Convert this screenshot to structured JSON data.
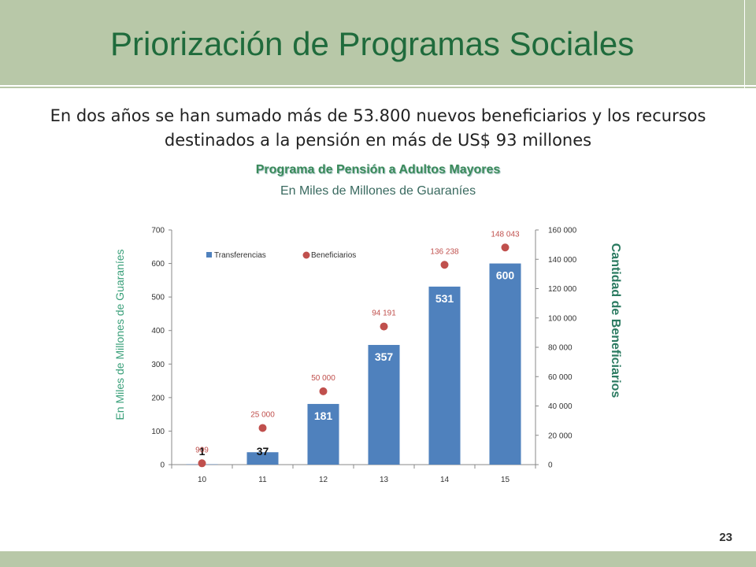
{
  "slide": {
    "title": "Priorización de Programas Sociales",
    "subtitle": "En dos años se han sumado más de 53.800 nuevos beneficiarios y los recursos destinados a la pensión en más de US$ 93 millones",
    "page_number": "23"
  },
  "colors": {
    "band": "#b8c8a8",
    "title": "#1f6b3c",
    "bar": "#4f81bd",
    "dot": "#c0504d"
  },
  "chart_data": {
    "type": "bar",
    "title": "Programa de Pensión a Adultos Mayores",
    "subtitle": "En Miles de Millones de Guaraníes",
    "ylabel": "En Miles de Millones de Guaraníes",
    "y2label": "Cantidad de Beneficiarios",
    "categories": [
      "10",
      "11",
      "12",
      "13",
      "14",
      "15"
    ],
    "ylim": [
      0,
      700
    ],
    "y_ticks": [
      "0",
      "100",
      "200",
      "300",
      "400",
      "500",
      "600",
      "700"
    ],
    "y2lim": [
      0,
      160000
    ],
    "y2_ticks": [
      "0",
      "20 000",
      "40 000",
      "60 000",
      "80 000",
      "100 000",
      "120 000",
      "140 000",
      "160 000"
    ],
    "grid": false,
    "legend_position": "top-left",
    "series": [
      {
        "name": "Transferencias",
        "type": "bar",
        "axis": "left",
        "values": [
          1,
          37,
          181,
          357,
          531,
          600
        ],
        "labels": [
          "1",
          "37",
          "181",
          "357",
          "531",
          "600"
        ]
      },
      {
        "name": "Beneficiarios",
        "type": "scatter",
        "axis": "right",
        "values": [
          909,
          25000,
          50000,
          94191,
          136238,
          148043
        ],
        "labels": [
          "909",
          "25 000",
          "50 000",
          "94 191",
          "136 238",
          "148 043"
        ]
      }
    ]
  }
}
